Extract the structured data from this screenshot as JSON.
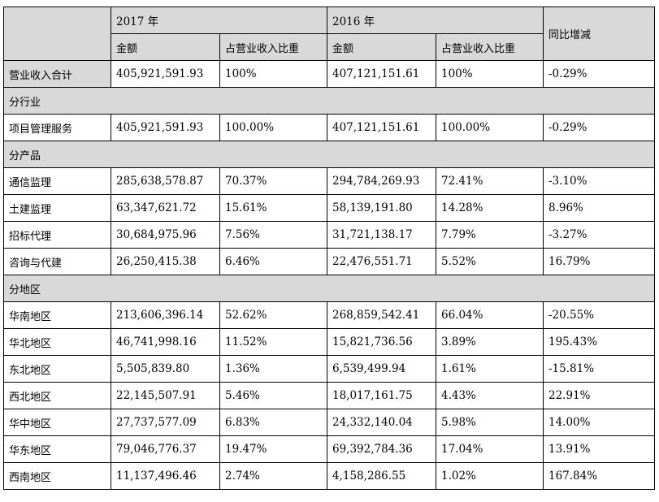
{
  "header": {
    "year_2017": "2017 年",
    "year_2016": "2016 年",
    "amount": "金额",
    "ratio": "占营业收入比重",
    "yoy": "同比增减"
  },
  "total": {
    "label": "营业收入合计",
    "amt2017": "405,921,591.93",
    "pct2017": "100%",
    "amt2016": "407,121,151.61",
    "pct2016": "100%",
    "yoy": "-0.29%"
  },
  "sections": [
    {
      "title": "分行业",
      "rows": [
        {
          "label": "项目管理服务",
          "amt2017": "405,921,591.93",
          "pct2017": "100.00%",
          "amt2016": "407,121,151.61",
          "pct2016": "100.00%",
          "yoy": "-0.29%"
        }
      ]
    },
    {
      "title": "分产品",
      "rows": [
        {
          "label": "通信监理",
          "amt2017": "285,638,578.87",
          "pct2017": "70.37%",
          "amt2016": "294,784,269.93",
          "pct2016": "72.41%",
          "yoy": "-3.10%"
        },
        {
          "label": "土建监理",
          "amt2017": "63,347,621.72",
          "pct2017": "15.61%",
          "amt2016": "58,139,191.80",
          "pct2016": "14.28%",
          "yoy": "8.96%"
        },
        {
          "label": "招标代理",
          "amt2017": "30,684,975.96",
          "pct2017": "7.56%",
          "amt2016": "31,721,138.17",
          "pct2016": "7.79%",
          "yoy": "-3.27%"
        },
        {
          "label": "咨询与代建",
          "amt2017": "26,250,415.38",
          "pct2017": "6.46%",
          "amt2016": "22,476,551.71",
          "pct2016": "5.52%",
          "yoy": "16.79%"
        }
      ]
    },
    {
      "title": "分地区",
      "rows": [
        {
          "label": "华南地区",
          "amt2017": "213,606,396.14",
          "pct2017": "52.62%",
          "amt2016": "268,859,542.41",
          "pct2016": "66.04%",
          "yoy": "-20.55%"
        },
        {
          "label": "华北地区",
          "amt2017": "46,741,998.16",
          "pct2017": "11.52%",
          "amt2016": "15,821,736.56",
          "pct2016": "3.89%",
          "yoy": "195.43%"
        },
        {
          "label": "东北地区",
          "amt2017": "5,505,839.80",
          "pct2017": "1.36%",
          "amt2016": "6,539,499.94",
          "pct2016": "1.61%",
          "yoy": "-15.81%"
        },
        {
          "label": "西北地区",
          "amt2017": "22,145,507.91",
          "pct2017": "5.46%",
          "amt2016": "18,017,161.75",
          "pct2016": "4.43%",
          "yoy": "22.91%"
        },
        {
          "label": "华中地区",
          "amt2017": "27,737,577.09",
          "pct2017": "6.83%",
          "amt2016": "24,332,140.04",
          "pct2016": "5.98%",
          "yoy": "14.00%"
        },
        {
          "label": "华东地区",
          "amt2017": "79,046,776.37",
          "pct2017": "19.47%",
          "amt2016": "69,392,784.36",
          "pct2016": "17.04%",
          "yoy": "13.91%"
        },
        {
          "label": "西南地区",
          "amt2017": "11,137,496.46",
          "pct2017": "2.74%",
          "amt2016": "4,158,286.55",
          "pct2016": "1.02%",
          "yoy": "167.84%"
        }
      ]
    }
  ]
}
